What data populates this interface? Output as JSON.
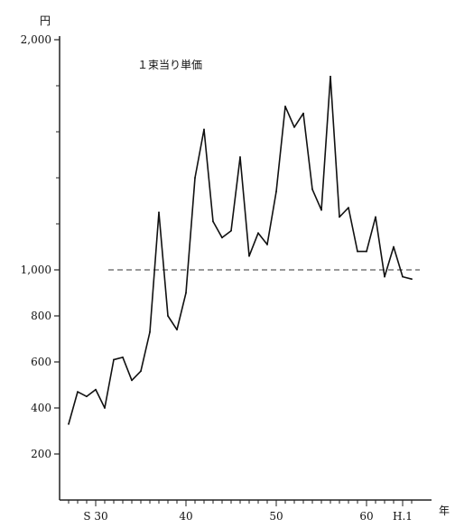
{
  "chart_data": {
    "type": "line",
    "title": "",
    "annotation": "１束当り単価",
    "y_unit": "円",
    "x_unit": "年",
    "ylim": [
      0,
      2000
    ],
    "xlim": [
      26,
      65
    ],
    "grid": false,
    "legend": "none",
    "y_ticks": [
      {
        "value": 200,
        "label": "200"
      },
      {
        "value": 400,
        "label": "400"
      },
      {
        "value": 600,
        "label": "600"
      },
      {
        "value": 800,
        "label": "800"
      },
      {
        "value": 1000,
        "label": "1,000"
      },
      {
        "value": 2000,
        "label": "2,000"
      }
    ],
    "x_ticks": [
      {
        "value": 30,
        "label": "S 30"
      },
      {
        "value": 40,
        "label": "40"
      },
      {
        "value": 50,
        "label": "50"
      },
      {
        "value": 60,
        "label": "60"
      },
      {
        "value": 64,
        "label": "H.1"
      }
    ],
    "reference_line": {
      "value": 1000,
      "style": "dashed"
    },
    "series": [
      {
        "x": [
          27,
          28,
          29,
          30,
          31,
          32,
          33,
          34,
          35,
          36,
          37,
          38,
          39,
          40,
          41,
          42,
          43,
          44,
          45,
          46,
          47,
          48,
          49,
          50,
          51,
          52,
          53,
          54,
          55,
          56,
          57,
          58,
          59,
          60,
          61,
          62,
          63,
          64,
          65
        ],
        "y": [
          330,
          470,
          450,
          480,
          400,
          610,
          620,
          520,
          560,
          730,
          1250,
          800,
          740,
          900,
          1400,
          1610,
          1210,
          1140,
          1170,
          1490,
          1060,
          1160,
          1110,
          1340,
          1710,
          1620,
          1680,
          1350,
          1260,
          1840,
          1230,
          1270,
          1080,
          1080,
          1230,
          970,
          1100,
          970,
          960
        ],
        "values": [
          330,
          470,
          450,
          480,
          400,
          610,
          620,
          520,
          560,
          730,
          1250,
          800,
          740,
          900,
          1400,
          1610,
          1210,
          1140,
          1170,
          1490,
          1060,
          1160,
          1110,
          1340,
          1710,
          1620,
          1680,
          1350,
          1260,
          1840,
          1230,
          1270,
          1080,
          1080,
          1230,
          970,
          1100,
          970,
          960
        ]
      }
    ]
  }
}
